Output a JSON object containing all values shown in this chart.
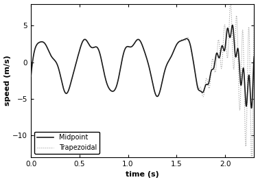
{
  "xlabel": "time (s)",
  "ylabel": "speed (m/s)",
  "xlim": [
    0,
    2.3
  ],
  "ylim": [
    -13,
    8
  ],
  "yticks": [
    -10,
    -5,
    0,
    5
  ],
  "xticks": [
    0,
    0.5,
    1.0,
    1.5,
    2.0
  ],
  "midpoint_color": "#1a1a1a",
  "trap_color": "#999999",
  "background_color": "#ffffff",
  "legend_loc": "lower left",
  "fig_width": 3.76,
  "fig_height": 2.65,
  "dpi": 100,
  "midpoint_lw": 1.2,
  "trap_lw": 0.8
}
